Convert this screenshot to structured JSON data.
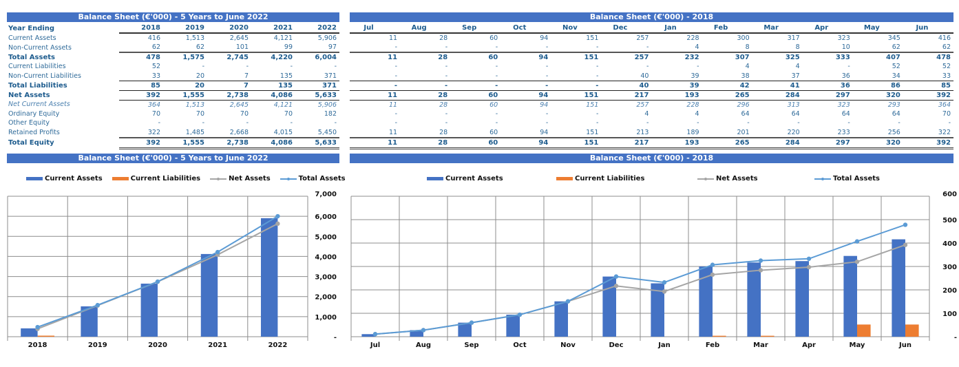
{
  "annual_table": {
    "title": "Balance Sheet (€'000) - 5 Years to June 2022",
    "header_label": "Year Ending",
    "columns": [
      "2018",
      "2019",
      "2020",
      "2021",
      "2022"
    ],
    "rows": [
      {
        "label": "Current Assets",
        "style": "normal",
        "values": [
          "416",
          "1,513",
          "2,645",
          "4,121",
          "5,906"
        ]
      },
      {
        "label": "Non-Current Assets",
        "style": "ul",
        "values": [
          "62",
          "62",
          "101",
          "99",
          "97"
        ]
      },
      {
        "label": "Total Assets",
        "style": "bold",
        "values": [
          "478",
          "1,575",
          "2,745",
          "4,220",
          "6,004"
        ]
      },
      {
        "label": "Current Liabilities",
        "style": "normal",
        "values": [
          "52",
          "-",
          "-",
          "-",
          "-"
        ]
      },
      {
        "label": "Non-Current Liabilities",
        "style": "ul1",
        "values": [
          "33",
          "20",
          "7",
          "135",
          "371"
        ]
      },
      {
        "label": "Total Liabilities",
        "style": "bold-ul1",
        "values": [
          "85",
          "20",
          "7",
          "135",
          "371"
        ]
      },
      {
        "label": "Net Assets",
        "style": "bold-ul1",
        "values": [
          "392",
          "1,555",
          "2,738",
          "4,086",
          "5,633"
        ]
      },
      {
        "label": "Net Current Assets",
        "style": "ital",
        "values": [
          "364",
          "1,513",
          "2,645",
          "4,121",
          "5,906"
        ]
      },
      {
        "label": "Ordinary Equity",
        "style": "normal",
        "values": [
          "70",
          "70",
          "70",
          "70",
          "182"
        ]
      },
      {
        "label": "Other Equity",
        "style": "normal",
        "values": [
          "-",
          "-",
          "-",
          "-",
          "-"
        ]
      },
      {
        "label": "Retained Profits",
        "style": "ul",
        "values": [
          "322",
          "1,485",
          "2,668",
          "4,015",
          "5,450"
        ]
      },
      {
        "label": "Total Equity",
        "style": "bold-dbl",
        "values": [
          "392",
          "1,555",
          "2,738",
          "4,086",
          "5,633"
        ]
      }
    ]
  },
  "monthly_table": {
    "title": "Balance Sheet (€'000) - 2018",
    "columns": [
      "Jul",
      "Aug",
      "Sep",
      "Oct",
      "Nov",
      "Dec",
      "Jan",
      "Feb",
      "Mar",
      "Apr",
      "May",
      "Jun"
    ],
    "rows": [
      {
        "style": "normal",
        "values": [
          "11",
          "28",
          "60",
          "94",
          "151",
          "257",
          "228",
          "300",
          "317",
          "323",
          "345",
          "416"
        ]
      },
      {
        "style": "ul",
        "values": [
          "-",
          "-",
          "-",
          "-",
          "-",
          "-",
          "4",
          "8",
          "8",
          "10",
          "62",
          "62"
        ]
      },
      {
        "style": "bold",
        "values": [
          "11",
          "28",
          "60",
          "94",
          "151",
          "257",
          "232",
          "307",
          "325",
          "333",
          "407",
          "478"
        ]
      },
      {
        "style": "normal",
        "values": [
          "-",
          "-",
          "-",
          "-",
          "-",
          "-",
          "-",
          "4",
          "4",
          "-",
          "52",
          "52"
        ]
      },
      {
        "style": "ul1",
        "values": [
          "-",
          "-",
          "-",
          "-",
          "-",
          "40",
          "39",
          "38",
          "37",
          "36",
          "34",
          "33"
        ]
      },
      {
        "style": "bold-ul1",
        "values": [
          "-",
          "-",
          "-",
          "-",
          "-",
          "40",
          "39",
          "42",
          "41",
          "36",
          "86",
          "85"
        ]
      },
      {
        "style": "bold-ul1",
        "values": [
          "11",
          "28",
          "60",
          "94",
          "151",
          "217",
          "193",
          "265",
          "284",
          "297",
          "320",
          "392"
        ]
      },
      {
        "style": "ital",
        "values": [
          "11",
          "28",
          "60",
          "94",
          "151",
          "257",
          "228",
          "296",
          "313",
          "323",
          "293",
          "364"
        ]
      },
      {
        "style": "normal",
        "values": [
          "-",
          "-",
          "-",
          "-",
          "-",
          "4",
          "4",
          "64",
          "64",
          "64",
          "64",
          "70"
        ]
      },
      {
        "style": "normal",
        "values": [
          "-",
          "-",
          "-",
          "-",
          "-",
          "-",
          "-",
          "-",
          "-",
          "-",
          "-",
          "-"
        ]
      },
      {
        "style": "ul",
        "values": [
          "11",
          "28",
          "60",
          "94",
          "151",
          "213",
          "189",
          "201",
          "220",
          "233",
          "256",
          "322"
        ]
      },
      {
        "style": "bold-dbl",
        "values": [
          "11",
          "28",
          "60",
          "94",
          "151",
          "217",
          "193",
          "265",
          "284",
          "297",
          "320",
          "392"
        ]
      }
    ]
  },
  "colors": {
    "banner": "#4472c4",
    "current_assets": "#4472c4",
    "current_liabilities": "#ed7d31",
    "net_assets": "#a5a5a5",
    "total_assets": "#5b9bd5"
  },
  "chart_data": [
    {
      "type": "bar",
      "title": "Balance Sheet (€'000) - 5 Years to June 2022",
      "categories": [
        "2018",
        "2019",
        "2020",
        "2021",
        "2022"
      ],
      "series": [
        {
          "name": "Current Assets",
          "kind": "bar",
          "values": [
            416,
            1513,
            2645,
            4121,
            5906
          ]
        },
        {
          "name": "Current Liabilities",
          "kind": "bar",
          "values": [
            52,
            0,
            0,
            0,
            0
          ]
        },
        {
          "name": "Net Assets",
          "kind": "line",
          "values": [
            392,
            1555,
            2738,
            4086,
            5633
          ]
        },
        {
          "name": "Total Assets",
          "kind": "line",
          "values": [
            478,
            1575,
            2745,
            4220,
            6004
          ]
        }
      ],
      "ylim": [
        0,
        7000
      ],
      "yticks": [
        0,
        1000,
        2000,
        3000,
        4000,
        5000,
        6000,
        7000
      ],
      "ytick_labels": [
        "-",
        "1,000",
        "2,000",
        "3,000",
        "4,000",
        "5,000",
        "6,000",
        "7,000"
      ],
      "y_axis_side": "right",
      "grid": true,
      "legend_position": "top"
    },
    {
      "type": "bar",
      "title": "Balance Sheet (€'000) - 2018",
      "categories": [
        "Jul",
        "Aug",
        "Sep",
        "Oct",
        "Nov",
        "Dec",
        "Jan",
        "Feb",
        "Mar",
        "Apr",
        "May",
        "Jun"
      ],
      "series": [
        {
          "name": "Current Assets",
          "kind": "bar",
          "values": [
            11,
            28,
            60,
            94,
            151,
            257,
            228,
            300,
            317,
            323,
            345,
            416
          ]
        },
        {
          "name": "Current Liabilities",
          "kind": "bar",
          "values": [
            0,
            0,
            0,
            0,
            0,
            0,
            0,
            4,
            4,
            0,
            52,
            52
          ]
        },
        {
          "name": "Net Assets",
          "kind": "line",
          "values": [
            11,
            28,
            60,
            94,
            151,
            217,
            193,
            265,
            284,
            297,
            320,
            392
          ]
        },
        {
          "name": "Total Assets",
          "kind": "line",
          "values": [
            11,
            28,
            60,
            94,
            151,
            257,
            232,
            307,
            325,
            333,
            407,
            478
          ]
        }
      ],
      "ylim": [
        0,
        600
      ],
      "yticks": [
        0,
        100,
        200,
        300,
        400,
        500,
        600
      ],
      "ytick_labels": [
        "-",
        "100",
        "200",
        "300",
        "400",
        "500",
        "600"
      ],
      "y_axis_side": "right",
      "grid": true,
      "legend_position": "top"
    }
  ]
}
